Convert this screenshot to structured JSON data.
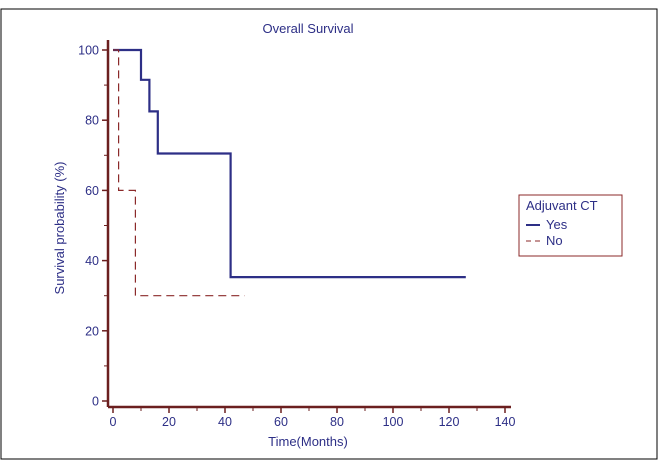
{
  "chart_data": {
    "type": "line",
    "title": "Overall Survival",
    "xlabel": "Time(Months)",
    "ylabel": "Survival probability (%)",
    "xlim": [
      0,
      140
    ],
    "ylim": [
      0,
      100
    ],
    "xticks": [
      0,
      20,
      40,
      60,
      80,
      100,
      120,
      140
    ],
    "yticks": [
      0,
      20,
      40,
      60,
      80,
      100
    ],
    "grid": false,
    "legend": {
      "title": "Adjuvant CT",
      "placement": "right"
    },
    "series": [
      {
        "name": "Yes",
        "style": "solid",
        "color": "#2d2f86",
        "x": [
          0,
          10,
          10,
          13,
          13,
          16,
          16,
          42,
          42,
          126
        ],
        "y": [
          100,
          100,
          91.5,
          91.5,
          82.5,
          82.5,
          70.5,
          70.5,
          35.3,
          35.3
        ]
      },
      {
        "name": "No",
        "style": "dashed",
        "color": "#8b2a2a",
        "x": [
          0,
          2,
          2,
          8,
          8,
          47
        ],
        "y": [
          100,
          100,
          60,
          60,
          30,
          30
        ]
      }
    ]
  }
}
